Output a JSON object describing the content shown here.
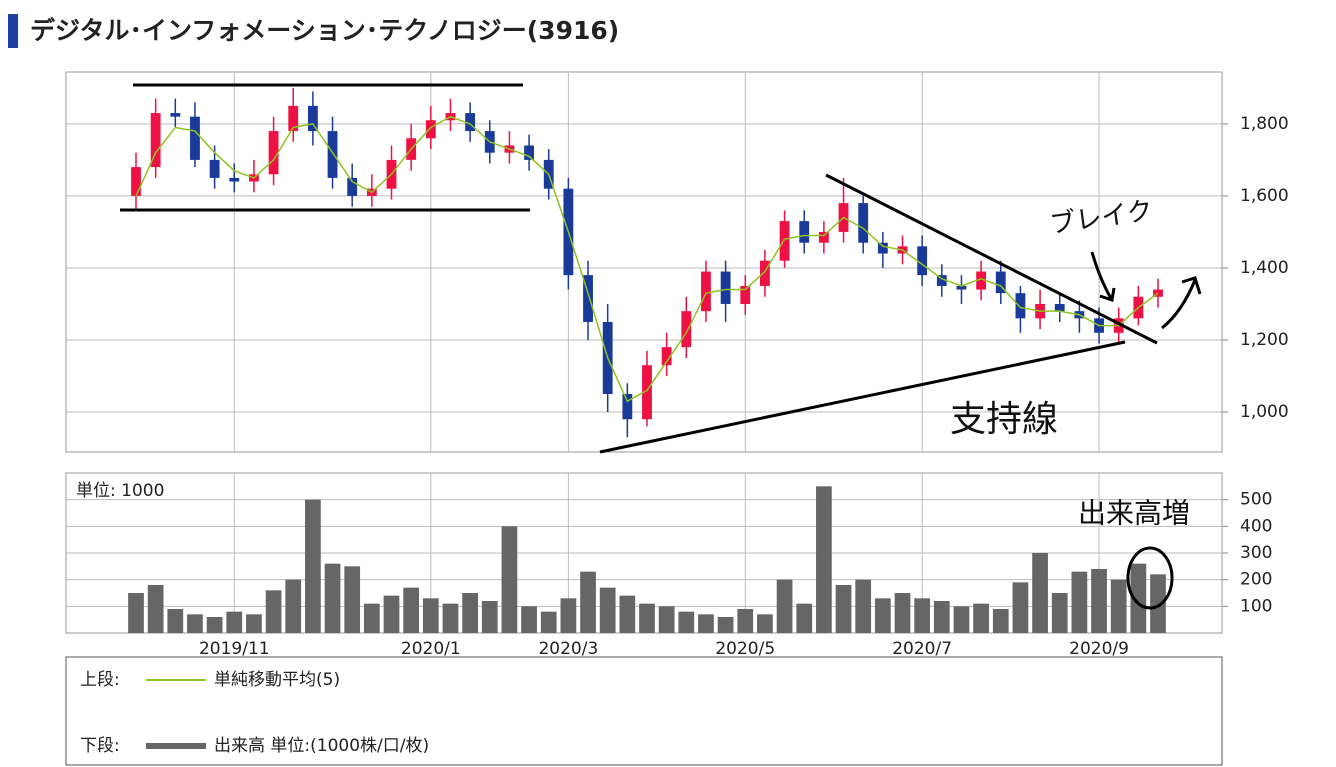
{
  "chart_data": {
    "type": "candlestick",
    "title": "デジタル･インフォメーション･テクノロジー(3916)",
    "categories": [
      null,
      null,
      null,
      null,
      null,
      "2019/11",
      null,
      null,
      null,
      null,
      null,
      null,
      null,
      null,
      null,
      "2020/1",
      null,
      null,
      null,
      null,
      null,
      null,
      "2020/3",
      null,
      null,
      null,
      null,
      null,
      null,
      null,
      null,
      "2020/5",
      null,
      null,
      null,
      null,
      null,
      null,
      null,
      null,
      "2020/7",
      null,
      null,
      null,
      null,
      null,
      null,
      null,
      null,
      "2020/9",
      null,
      null,
      null
    ],
    "open": [
      1600,
      1680,
      1830,
      1820,
      1700,
      1650,
      1640,
      1660,
      1780,
      1850,
      1780,
      1650,
      1600,
      1620,
      1700,
      1760,
      1810,
      1830,
      1780,
      1720,
      1740,
      1700,
      1620,
      1380,
      1250,
      1050,
      980,
      1130,
      1180,
      1280,
      1390,
      1300,
      1350,
      1420,
      1530,
      1470,
      1500,
      1580,
      1470,
      1440,
      1460,
      1380,
      1350,
      1340,
      1390,
      1330,
      1260,
      1300,
      1280,
      1260,
      1220,
      1260,
      1320
    ],
    "high": [
      1720,
      1870,
      1870,
      1860,
      1740,
      1690,
      1700,
      1820,
      1900,
      1890,
      1820,
      1690,
      1660,
      1740,
      1800,
      1850,
      1870,
      1860,
      1810,
      1780,
      1770,
      1730,
      1650,
      1420,
      1300,
      1080,
      1170,
      1220,
      1320,
      1420,
      1420,
      1380,
      1450,
      1560,
      1560,
      1530,
      1650,
      1600,
      1500,
      1490,
      1490,
      1410,
      1380,
      1420,
      1420,
      1350,
      1340,
      1330,
      1310,
      1290,
      1290,
      1350,
      1370
    ],
    "low": [
      1560,
      1650,
      1790,
      1680,
      1620,
      1610,
      1610,
      1630,
      1750,
      1740,
      1620,
      1570,
      1570,
      1590,
      1670,
      1730,
      1780,
      1750,
      1690,
      1690,
      1670,
      1590,
      1340,
      1200,
      1000,
      930,
      960,
      1100,
      1150,
      1250,
      1250,
      1270,
      1320,
      1400,
      1440,
      1440,
      1470,
      1440,
      1400,
      1410,
      1350,
      1320,
      1300,
      1310,
      1300,
      1220,
      1230,
      1250,
      1220,
      1190,
      1190,
      1240,
      1290
    ],
    "close": [
      1680,
      1830,
      1820,
      1700,
      1650,
      1640,
      1660,
      1780,
      1850,
      1780,
      1650,
      1600,
      1620,
      1700,
      1760,
      1810,
      1830,
      1780,
      1720,
      1740,
      1700,
      1620,
      1380,
      1250,
      1050,
      980,
      1130,
      1180,
      1280,
      1390,
      1300,
      1350,
      1420,
      1530,
      1470,
      1500,
      1580,
      1470,
      1440,
      1460,
      1380,
      1350,
      1340,
      1390,
      1330,
      1260,
      1300,
      1280,
      1260,
      1220,
      1260,
      1320,
      1340
    ],
    "up_color": "#ee1144",
    "down_color": "#1a3a9a",
    "ylim": [
      889,
      1944
    ],
    "yticks": [
      {
        "value": 1000,
        "label": "1,000"
      },
      {
        "value": 1200,
        "label": "1,200"
      },
      {
        "value": 1400,
        "label": "1,400"
      },
      {
        "value": 1600,
        "label": "1,600"
      },
      {
        "value": 1800,
        "label": "1,800"
      }
    ],
    "grid": true,
    "upper_label": "上段:",
    "overlay": {
      "name": "単純移動平均(5)",
      "color": "#8fc31f",
      "values": [
        1600,
        1720,
        1790,
        1780,
        1720,
        1670,
        1650,
        1700,
        1790,
        1800,
        1720,
        1640,
        1610,
        1660,
        1730,
        1790,
        1820,
        1800,
        1750,
        1730,
        1710,
        1660,
        1500,
        1330,
        1150,
        1030,
        1060,
        1140,
        1220,
        1330,
        1340,
        1340,
        1390,
        1480,
        1490,
        1490,
        1540,
        1510,
        1460,
        1450,
        1410,
        1370,
        1350,
        1370,
        1350,
        1290,
        1280,
        1280,
        1270,
        1240,
        1240,
        1290,
        1330
      ]
    },
    "lower_label": "下段:",
    "volume": {
      "type": "bar",
      "name": "出来高 単位:(1000株/口/枚)",
      "unit_label": "単位: 1000",
      "color": "#666666",
      "values": [
        150,
        180,
        90,
        70,
        60,
        80,
        70,
        160,
        200,
        500,
        260,
        250,
        110,
        140,
        170,
        130,
        110,
        150,
        120,
        400,
        100,
        80,
        130,
        230,
        170,
        140,
        110,
        100,
        80,
        70,
        60,
        90,
        70,
        200,
        110,
        550,
        180,
        200,
        130,
        150,
        130,
        120,
        100,
        110,
        90,
        190,
        300,
        150,
        230,
        240,
        200,
        260,
        220
      ],
      "ylim": [
        0,
        600
      ],
      "yticks": [
        100,
        200,
        300,
        400,
        500
      ]
    },
    "annotations": [
      "ブレイク",
      "支持線",
      "出来高増"
    ]
  }
}
